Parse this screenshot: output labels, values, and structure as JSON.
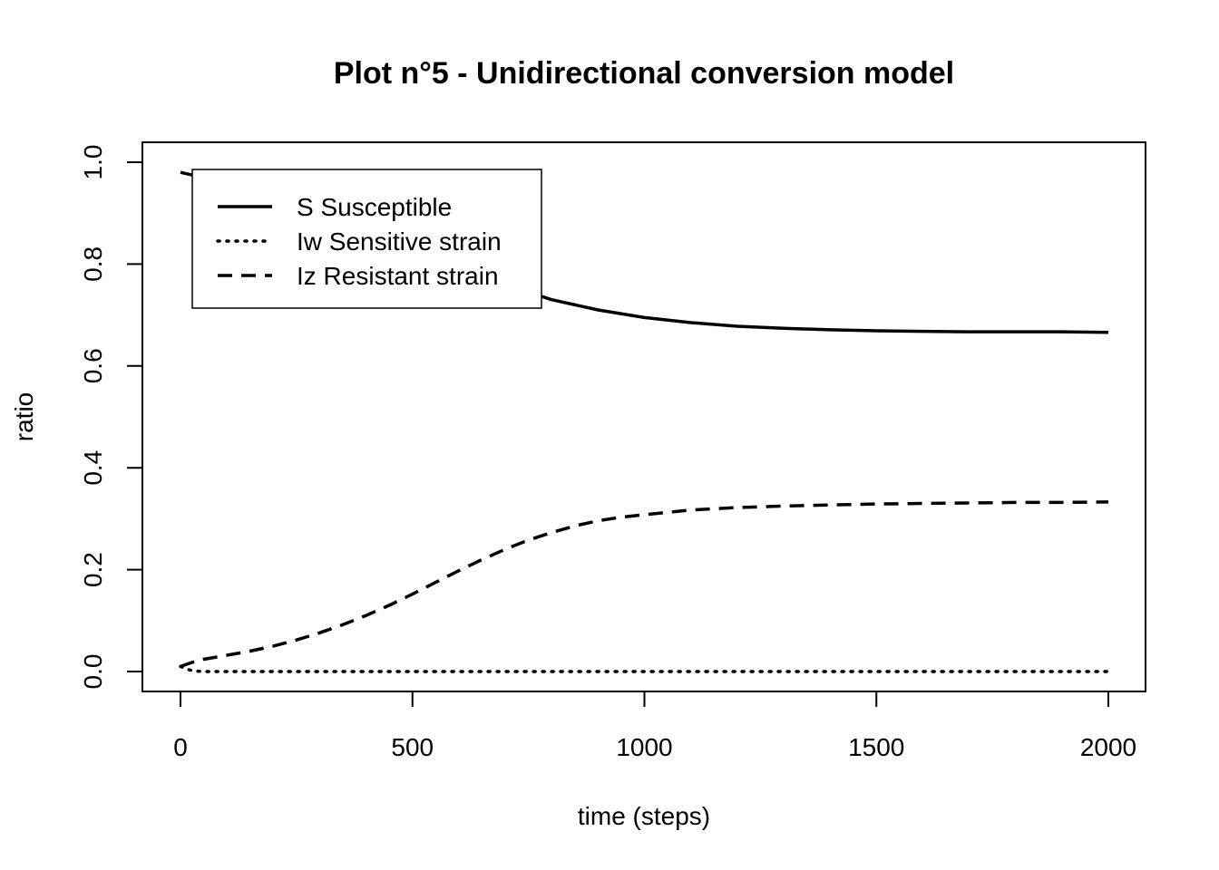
{
  "chart_data": {
    "type": "line",
    "title": "Plot n°5 - Unidirectional conversion model",
    "xlabel": "time (steps)",
    "ylabel": "ratio",
    "xlim": [
      0,
      2000
    ],
    "ylim": [
      0.0,
      1.0
    ],
    "x_ticks": [
      "0",
      "500",
      "1000",
      "1500",
      "2000"
    ],
    "y_ticks": [
      "0.0",
      "0.2",
      "0.4",
      "0.6",
      "0.8",
      "1.0"
    ],
    "grid": false,
    "legend_position": "top-left",
    "series": [
      {
        "name": "S Susceptible",
        "line_style": "solid",
        "x": [
          0,
          50,
          100,
          150,
          200,
          300,
          400,
          500,
          600,
          700,
          800,
          900,
          1000,
          1100,
          1200,
          1300,
          1400,
          1500,
          1600,
          1700,
          1800,
          1900,
          2000
        ],
        "y": [
          0.98,
          0.97,
          0.96,
          0.945,
          0.93,
          0.9,
          0.865,
          0.83,
          0.795,
          0.76,
          0.73,
          0.71,
          0.695,
          0.685,
          0.678,
          0.674,
          0.671,
          0.669,
          0.668,
          0.667,
          0.667,
          0.667,
          0.666
        ]
      },
      {
        "name": "Iw Sensitive strain",
        "line_style": "dotted",
        "x": [
          0,
          10,
          20,
          30,
          50,
          100,
          500,
          1000,
          1500,
          2000
        ],
        "y": [
          0.01,
          0.006,
          0.003,
          0.001,
          0.0,
          0.0,
          0.0,
          0.0,
          0.0,
          0.0
        ]
      },
      {
        "name": "Iz Resistant strain",
        "line_style": "dashed",
        "x": [
          0,
          25,
          50,
          100,
          150,
          200,
          250,
          300,
          350,
          400,
          450,
          500,
          550,
          600,
          650,
          700,
          750,
          800,
          850,
          900,
          950,
          1000,
          1100,
          1200,
          1300,
          1400,
          1500,
          1600,
          1700,
          1800,
          1900,
          2000
        ],
        "y": [
          0.01,
          0.018,
          0.024,
          0.032,
          0.04,
          0.05,
          0.062,
          0.076,
          0.092,
          0.11,
          0.13,
          0.152,
          0.175,
          0.198,
          0.22,
          0.24,
          0.258,
          0.273,
          0.286,
          0.296,
          0.303,
          0.308,
          0.317,
          0.322,
          0.325,
          0.327,
          0.329,
          0.33,
          0.331,
          0.332,
          0.332,
          0.333
        ]
      }
    ]
  }
}
